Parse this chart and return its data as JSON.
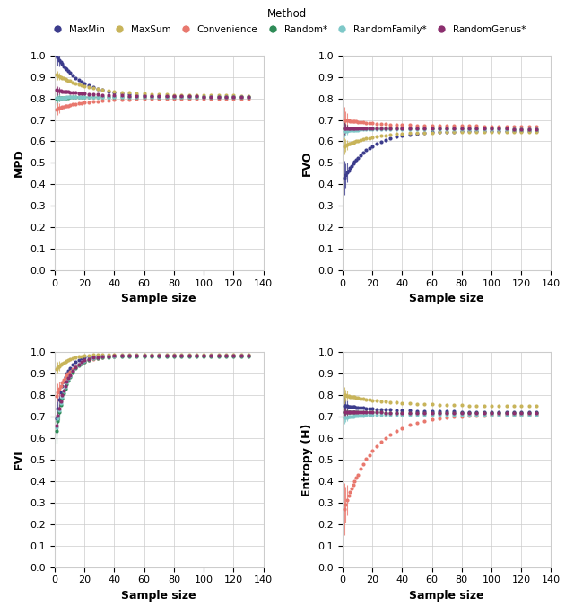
{
  "methods": [
    "MaxMin",
    "MaxSum",
    "Convenience",
    "Random*",
    "RandomFamily*",
    "RandomGenus*"
  ],
  "colors": [
    "#3c3c8c",
    "#c8b45a",
    "#e8786e",
    "#2e8b57",
    "#7ec8c8",
    "#8b2e6e"
  ],
  "legend_title": "Method",
  "subplots": [
    {
      "ylabel": "MPD",
      "ylim": [
        0.0,
        1.0
      ],
      "yticks": [
        0.0,
        0.1,
        0.2,
        0.3,
        0.4,
        0.5,
        0.6,
        0.7,
        0.8,
        0.9,
        1.0
      ],
      "curves": [
        {
          "mean_start": 1.0,
          "mean_mid": 0.88,
          "mean_end": 0.808,
          "shape": "exp_decay",
          "decay": 0.06
        },
        {
          "mean_start": 0.91,
          "mean_mid": 0.875,
          "mean_end": 0.812,
          "shape": "exp_decay",
          "decay": 0.04
        },
        {
          "mean_start": 0.75,
          "mean_mid": 0.77,
          "mean_end": 0.8,
          "shape": "exp_rise",
          "decay": 0.05
        },
        {
          "mean_start": 0.8,
          "mean_mid": 0.805,
          "mean_end": 0.808,
          "shape": "exp_rise",
          "decay": 0.1
        },
        {
          "mean_start": 0.802,
          "mean_mid": 0.805,
          "mean_end": 0.807,
          "shape": "exp_rise",
          "decay": 0.1
        },
        {
          "mean_start": 0.838,
          "mean_mid": 0.825,
          "mean_end": 0.808,
          "shape": "exp_decay",
          "decay": 0.04
        }
      ],
      "errors": [
        0.05,
        0.03,
        0.04,
        0.03,
        0.03,
        0.03
      ]
    },
    {
      "ylabel": "FVO",
      "ylim": [
        0.0,
        1.0
      ],
      "yticks": [
        0.0,
        0.1,
        0.2,
        0.3,
        0.4,
        0.5,
        0.6,
        0.7,
        0.8,
        0.9,
        1.0
      ],
      "curves": [
        {
          "mean_start": 0.43,
          "mean_mid": 0.6,
          "mean_end": 0.648,
          "shape": "exp_rise",
          "decay": 0.06
        },
        {
          "mean_start": 0.578,
          "mean_mid": 0.615,
          "mean_end": 0.645,
          "shape": "exp_rise",
          "decay": 0.05
        },
        {
          "mean_start": 0.7,
          "mean_mid": 0.695,
          "mean_end": 0.67,
          "shape": "exp_decay",
          "decay": 0.04
        },
        {
          "mean_start": 0.66,
          "mean_mid": 0.66,
          "mean_end": 0.658,
          "shape": "flat",
          "decay": 0.1
        },
        {
          "mean_start": 0.648,
          "mean_mid": 0.653,
          "mean_end": 0.658,
          "shape": "exp_rise",
          "decay": 0.1
        },
        {
          "mean_start": 0.66,
          "mean_mid": 0.66,
          "mean_end": 0.658,
          "shape": "flat",
          "decay": 0.1
        }
      ],
      "errors": [
        0.08,
        0.04,
        0.06,
        0.03,
        0.03,
        0.03
      ]
    },
    {
      "ylabel": "FVI",
      "ylim": [
        0.0,
        1.0
      ],
      "yticks": [
        0.0,
        0.1,
        0.2,
        0.3,
        0.4,
        0.5,
        0.6,
        0.7,
        0.8,
        0.9,
        1.0
      ],
      "curves": [
        {
          "mean_start": 0.69,
          "mean_mid": 0.96,
          "mean_end": 0.985,
          "shape": "exp_rise",
          "decay": 0.18
        },
        {
          "mean_start": 0.92,
          "mean_mid": 0.975,
          "mean_end": 0.99,
          "shape": "exp_rise",
          "decay": 0.12
        },
        {
          "mean_start": 0.795,
          "mean_mid": 0.96,
          "mean_end": 0.985,
          "shape": "exp_rise",
          "decay": 0.1
        },
        {
          "mean_start": 0.635,
          "mean_mid": 0.92,
          "mean_end": 0.98,
          "shape": "exp_rise",
          "decay": 0.14
        },
        {
          "mean_start": 0.65,
          "mean_mid": 0.94,
          "mean_end": 0.983,
          "shape": "exp_rise",
          "decay": 0.14
        },
        {
          "mean_start": 0.66,
          "mean_mid": 0.95,
          "mean_end": 0.984,
          "shape": "exp_rise",
          "decay": 0.14
        }
      ],
      "errors": [
        0.07,
        0.04,
        0.06,
        0.06,
        0.06,
        0.05
      ]
    },
    {
      "ylabel": "Entropy (H)",
      "ylim": [
        0.0,
        1.0
      ],
      "yticks": [
        0.0,
        0.1,
        0.2,
        0.3,
        0.4,
        0.5,
        0.6,
        0.7,
        0.8,
        0.9,
        1.0
      ],
      "curves": [
        {
          "mean_start": 0.75,
          "mean_mid": 0.748,
          "mean_end": 0.72,
          "shape": "exp_decay",
          "decay": 0.03
        },
        {
          "mean_start": 0.8,
          "mean_mid": 0.79,
          "mean_end": 0.748,
          "shape": "exp_decay",
          "decay": 0.03
        },
        {
          "mean_start": 0.27,
          "mean_mid": 0.56,
          "mean_end": 0.71,
          "shape": "exp_rise",
          "decay": 0.05
        },
        {
          "mean_start": 0.72,
          "mean_mid": 0.718,
          "mean_end": 0.715,
          "shape": "flat",
          "decay": 0.1
        },
        {
          "mean_start": 0.695,
          "mean_mid": 0.7,
          "mean_end": 0.71,
          "shape": "exp_rise",
          "decay": 0.1
        },
        {
          "mean_start": 0.72,
          "mean_mid": 0.718,
          "mean_end": 0.715,
          "shape": "flat",
          "decay": 0.1
        }
      ],
      "errors": [
        0.05,
        0.04,
        0.12,
        0.03,
        0.03,
        0.03
      ]
    }
  ],
  "xlabel": "Sample size",
  "xlim": [
    0,
    140
  ],
  "xticks": [
    0,
    20,
    40,
    60,
    80,
    100,
    120,
    140
  ],
  "x_values": [
    1,
    2,
    3,
    4,
    5,
    6,
    7,
    8,
    9,
    10,
    12,
    14,
    16,
    18,
    20,
    23,
    26,
    29,
    32,
    36,
    40,
    45,
    50,
    55,
    60,
    65,
    70,
    75,
    80,
    85,
    90,
    95,
    100,
    105,
    110,
    115,
    120,
    125,
    130
  ]
}
